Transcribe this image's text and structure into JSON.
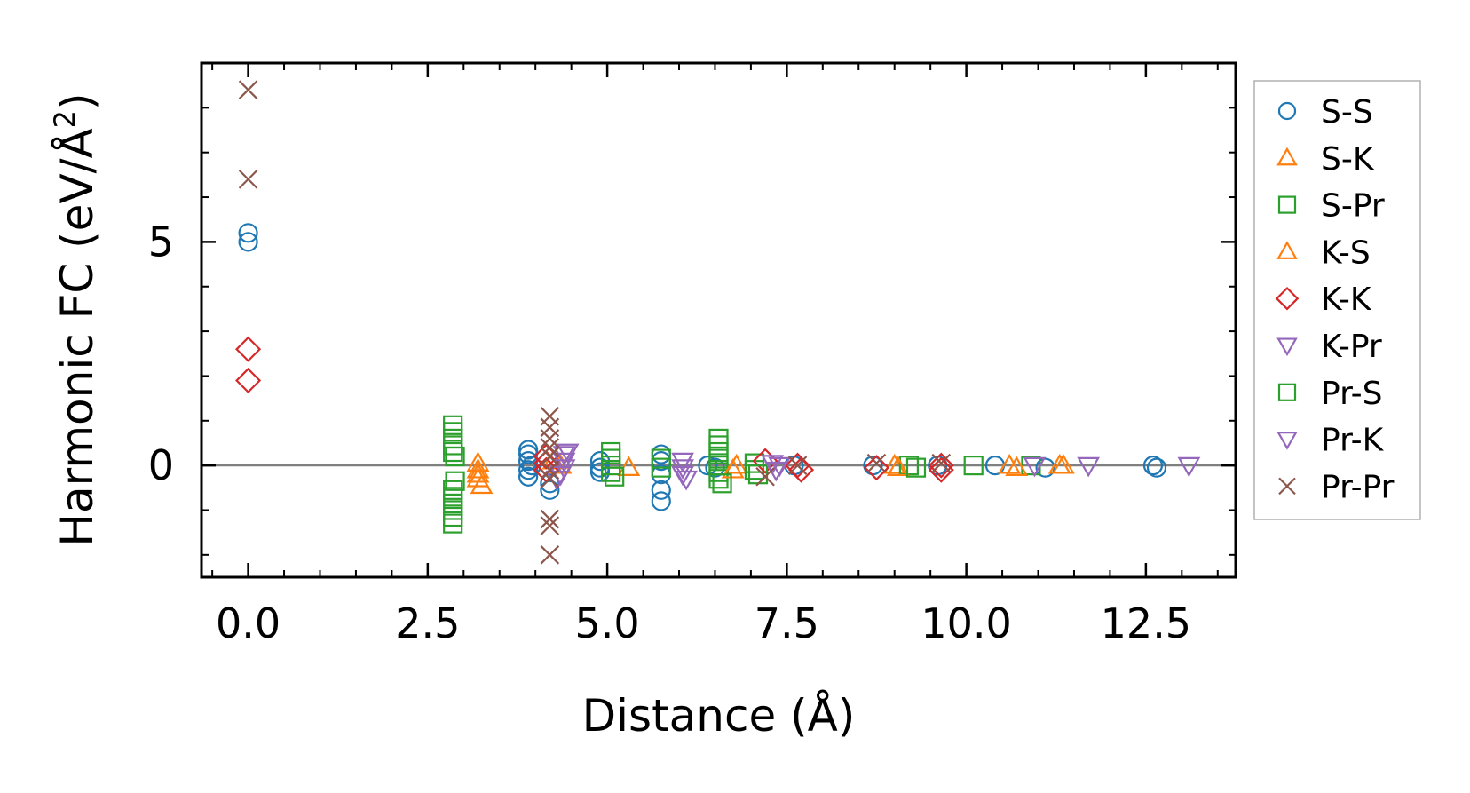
{
  "chart_data": {
    "type": "scatter",
    "title": "",
    "xlabel": "Distance (Å)",
    "ylabel_main": "Harmonic FC (eV/Å",
    "ylabel_sup": "2",
    "ylabel_close": ")",
    "xlim": [
      -0.65,
      13.75
    ],
    "ylim": [
      -2.5,
      9.0
    ],
    "xticks": [
      0.0,
      2.5,
      5.0,
      7.5,
      10.0,
      12.5
    ],
    "xtick_labels": [
      "0.0",
      "2.5",
      "5.0",
      "7.5",
      "10.0",
      "12.5"
    ],
    "yticks": [
      0,
      5
    ],
    "ytick_labels": [
      "0",
      "5"
    ],
    "legend_position": "outside-right",
    "series": [
      {
        "name": "S-S",
        "marker": "circle",
        "color": "#1f77b4",
        "points": [
          [
            0.0,
            5.2
          ],
          [
            0.0,
            5.0
          ],
          [
            3.9,
            0.35
          ],
          [
            3.9,
            0.25
          ],
          [
            3.9,
            0.1
          ],
          [
            3.9,
            -0.1
          ],
          [
            3.9,
            -0.25
          ],
          [
            3.95,
            0.0
          ],
          [
            4.2,
            -0.4
          ],
          [
            4.2,
            -0.55
          ],
          [
            4.9,
            0.1
          ],
          [
            4.9,
            -0.05
          ],
          [
            4.9,
            -0.15
          ],
          [
            5.75,
            0.25
          ],
          [
            5.75,
            0.1
          ],
          [
            5.75,
            -0.2
          ],
          [
            5.75,
            -0.55
          ],
          [
            5.75,
            -0.8
          ],
          [
            6.4,
            0.0
          ],
          [
            6.5,
            -0.05
          ],
          [
            7.6,
            0.0
          ],
          [
            8.7,
            0.0
          ],
          [
            9.6,
            0.0
          ],
          [
            10.4,
            0.0
          ],
          [
            11.1,
            -0.05
          ],
          [
            12.6,
            0.0
          ],
          [
            12.65,
            -0.05
          ]
        ]
      },
      {
        "name": "S-K",
        "marker": "triangle-up",
        "color": "#ff7f0e",
        "points": [
          [
            3.2,
            0.05
          ],
          [
            3.2,
            -0.1
          ],
          [
            3.2,
            -0.2
          ],
          [
            4.35,
            0.0
          ],
          [
            5.3,
            -0.05
          ],
          [
            6.8,
            0.0
          ],
          [
            9.0,
            0.0
          ],
          [
            10.6,
            0.0
          ],
          [
            11.35,
            0.0
          ]
        ]
      },
      {
        "name": "S-Pr",
        "marker": "square",
        "color": "#2ca02c",
        "points": [
          [
            2.85,
            0.9
          ],
          [
            2.85,
            0.75
          ],
          [
            2.85,
            0.6
          ],
          [
            2.85,
            0.45
          ],
          [
            2.85,
            0.3
          ],
          [
            2.85,
            -0.55
          ],
          [
            2.85,
            -0.7
          ],
          [
            2.85,
            -0.85
          ],
          [
            2.85,
            -1.0
          ],
          [
            2.85,
            -1.15
          ],
          [
            2.85,
            -1.3
          ],
          [
            5.05,
            0.3
          ],
          [
            5.05,
            0.15
          ],
          [
            5.05,
            0.0
          ],
          [
            5.05,
            -0.15
          ],
          [
            5.75,
            0.15
          ],
          [
            5.75,
            -0.05
          ],
          [
            6.55,
            0.6
          ],
          [
            6.55,
            0.45
          ],
          [
            6.55,
            0.3
          ],
          [
            6.55,
            0.15
          ],
          [
            6.55,
            0.0
          ],
          [
            6.55,
            -0.15
          ],
          [
            6.55,
            -0.3
          ],
          [
            7.05,
            0.05
          ],
          [
            7.05,
            -0.1
          ],
          [
            9.2,
            0.0
          ],
          [
            10.1,
            0.0
          ],
          [
            10.9,
            0.0
          ]
        ]
      },
      {
        "name": "K-S",
        "marker": "triangle-up",
        "color": "#ff7f0e",
        "points": [
          [
            3.2,
            -0.3
          ],
          [
            3.25,
            -0.45
          ],
          [
            4.25,
            0.1
          ],
          [
            6.75,
            -0.1
          ],
          [
            9.05,
            -0.05
          ],
          [
            10.7,
            -0.05
          ],
          [
            11.3,
            0.0
          ]
        ]
      },
      {
        "name": "K-K",
        "marker": "diamond",
        "color": "#d62728",
        "points": [
          [
            0.0,
            2.6
          ],
          [
            0.0,
            1.9
          ],
          [
            4.15,
            0.2
          ],
          [
            4.15,
            0.05
          ],
          [
            4.15,
            -0.1
          ],
          [
            7.2,
            0.1
          ],
          [
            7.65,
            0.0
          ],
          [
            7.7,
            -0.1
          ],
          [
            8.75,
            -0.05
          ],
          [
            9.65,
            0.0
          ],
          [
            9.65,
            -0.1
          ]
        ]
      },
      {
        "name": "K-Pr",
        "marker": "triangle-down",
        "color": "#9467bd",
        "points": [
          [
            4.4,
            0.25
          ],
          [
            4.4,
            0.1
          ],
          [
            4.4,
            -0.05
          ],
          [
            4.35,
            -0.2
          ],
          [
            6.05,
            0.1
          ],
          [
            6.05,
            -0.05
          ],
          [
            6.05,
            -0.2
          ],
          [
            7.3,
            0.05
          ],
          [
            7.4,
            0.0
          ],
          [
            10.95,
            0.0
          ],
          [
            11.7,
            0.0
          ]
        ]
      },
      {
        "name": "Pr-S",
        "marker": "square",
        "color": "#2ca02c",
        "points": [
          [
            2.88,
            0.2
          ],
          [
            2.88,
            -0.35
          ],
          [
            5.1,
            -0.25
          ],
          [
            6.6,
            -0.4
          ],
          [
            7.1,
            -0.2
          ],
          [
            9.3,
            -0.05
          ]
        ]
      },
      {
        "name": "Pr-K",
        "marker": "triangle-down",
        "color": "#9467bd",
        "points": [
          [
            4.45,
            0.3
          ],
          [
            4.3,
            -0.3
          ],
          [
            6.1,
            -0.3
          ],
          [
            7.35,
            -0.1
          ],
          [
            13.1,
            0.0
          ]
        ]
      },
      {
        "name": "Pr-Pr",
        "marker": "x",
        "color": "#8c564b",
        "points": [
          [
            0.0,
            8.4
          ],
          [
            0.0,
            6.4
          ],
          [
            4.2,
            1.1
          ],
          [
            4.2,
            0.85
          ],
          [
            4.2,
            0.6
          ],
          [
            4.2,
            0.4
          ],
          [
            4.2,
            0.2
          ],
          [
            4.2,
            -0.1
          ],
          [
            4.2,
            -0.3
          ],
          [
            4.2,
            -1.2
          ],
          [
            4.2,
            -1.35
          ],
          [
            4.2,
            -2.0
          ],
          [
            7.2,
            -0.25
          ],
          [
            7.65,
            0.0
          ],
          [
            8.75,
            0.05
          ],
          [
            9.65,
            0.05
          ]
        ]
      }
    ]
  }
}
